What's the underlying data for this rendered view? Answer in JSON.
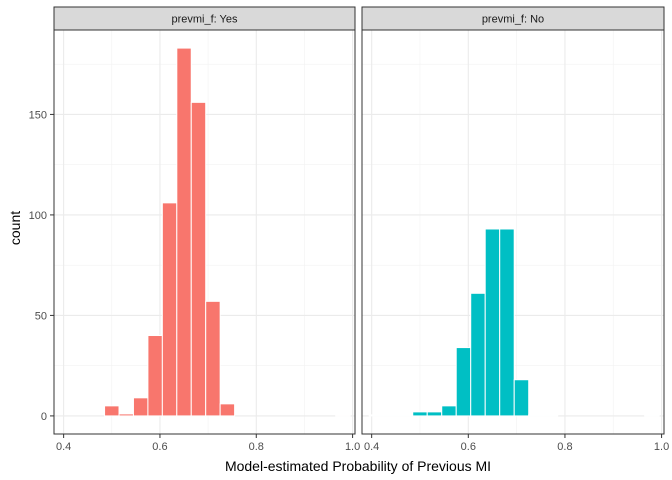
{
  "chart_data": {
    "type": "bar",
    "title": "",
    "xlabel": "Model-estimated Probability of Previous MI",
    "ylabel": "count",
    "xlim": [
      0.38,
      1.005
    ],
    "ylim": [
      -9,
      192
    ],
    "x_ticks": [
      0.4,
      0.6,
      0.8,
      1.0
    ],
    "x_tick_labels": [
      "0.4",
      "0.6",
      "0.8",
      "1.0"
    ],
    "y_ticks": [
      0,
      50,
      100,
      150
    ],
    "y_tick_labels": [
      "0",
      "50",
      "100",
      "150"
    ],
    "grid": true,
    "bin_width": 0.03,
    "facets": [
      {
        "strip_label": "prevmi_f: Yes",
        "color": "#F8766D",
        "bins": [
          {
            "x": 0.5,
            "count": 5
          },
          {
            "x": 0.53,
            "count": 1
          },
          {
            "x": 0.56,
            "count": 9
          },
          {
            "x": 0.59,
            "count": 40
          },
          {
            "x": 0.62,
            "count": 106
          },
          {
            "x": 0.65,
            "count": 183
          },
          {
            "x": 0.68,
            "count": 156
          },
          {
            "x": 0.71,
            "count": 57
          },
          {
            "x": 0.74,
            "count": 6
          },
          {
            "x": 0.98,
            "count": 0.5
          }
        ]
      },
      {
        "strip_label": "prevmi_f: No",
        "color": "#00BFC4",
        "bins": [
          {
            "x": 0.41,
            "count": 0.5
          },
          {
            "x": 0.44,
            "count": 0.5
          },
          {
            "x": 0.47,
            "count": 0.5
          },
          {
            "x": 0.5,
            "count": 2
          },
          {
            "x": 0.53,
            "count": 2
          },
          {
            "x": 0.56,
            "count": 5
          },
          {
            "x": 0.59,
            "count": 34
          },
          {
            "x": 0.62,
            "count": 61
          },
          {
            "x": 0.65,
            "count": 93
          },
          {
            "x": 0.68,
            "count": 93
          },
          {
            "x": 0.71,
            "count": 18
          },
          {
            "x": 0.74,
            "count": 0.5
          },
          {
            "x": 0.77,
            "count": 0.5
          },
          {
            "x": 0.98,
            "count": 0.5
          }
        ]
      }
    ]
  }
}
